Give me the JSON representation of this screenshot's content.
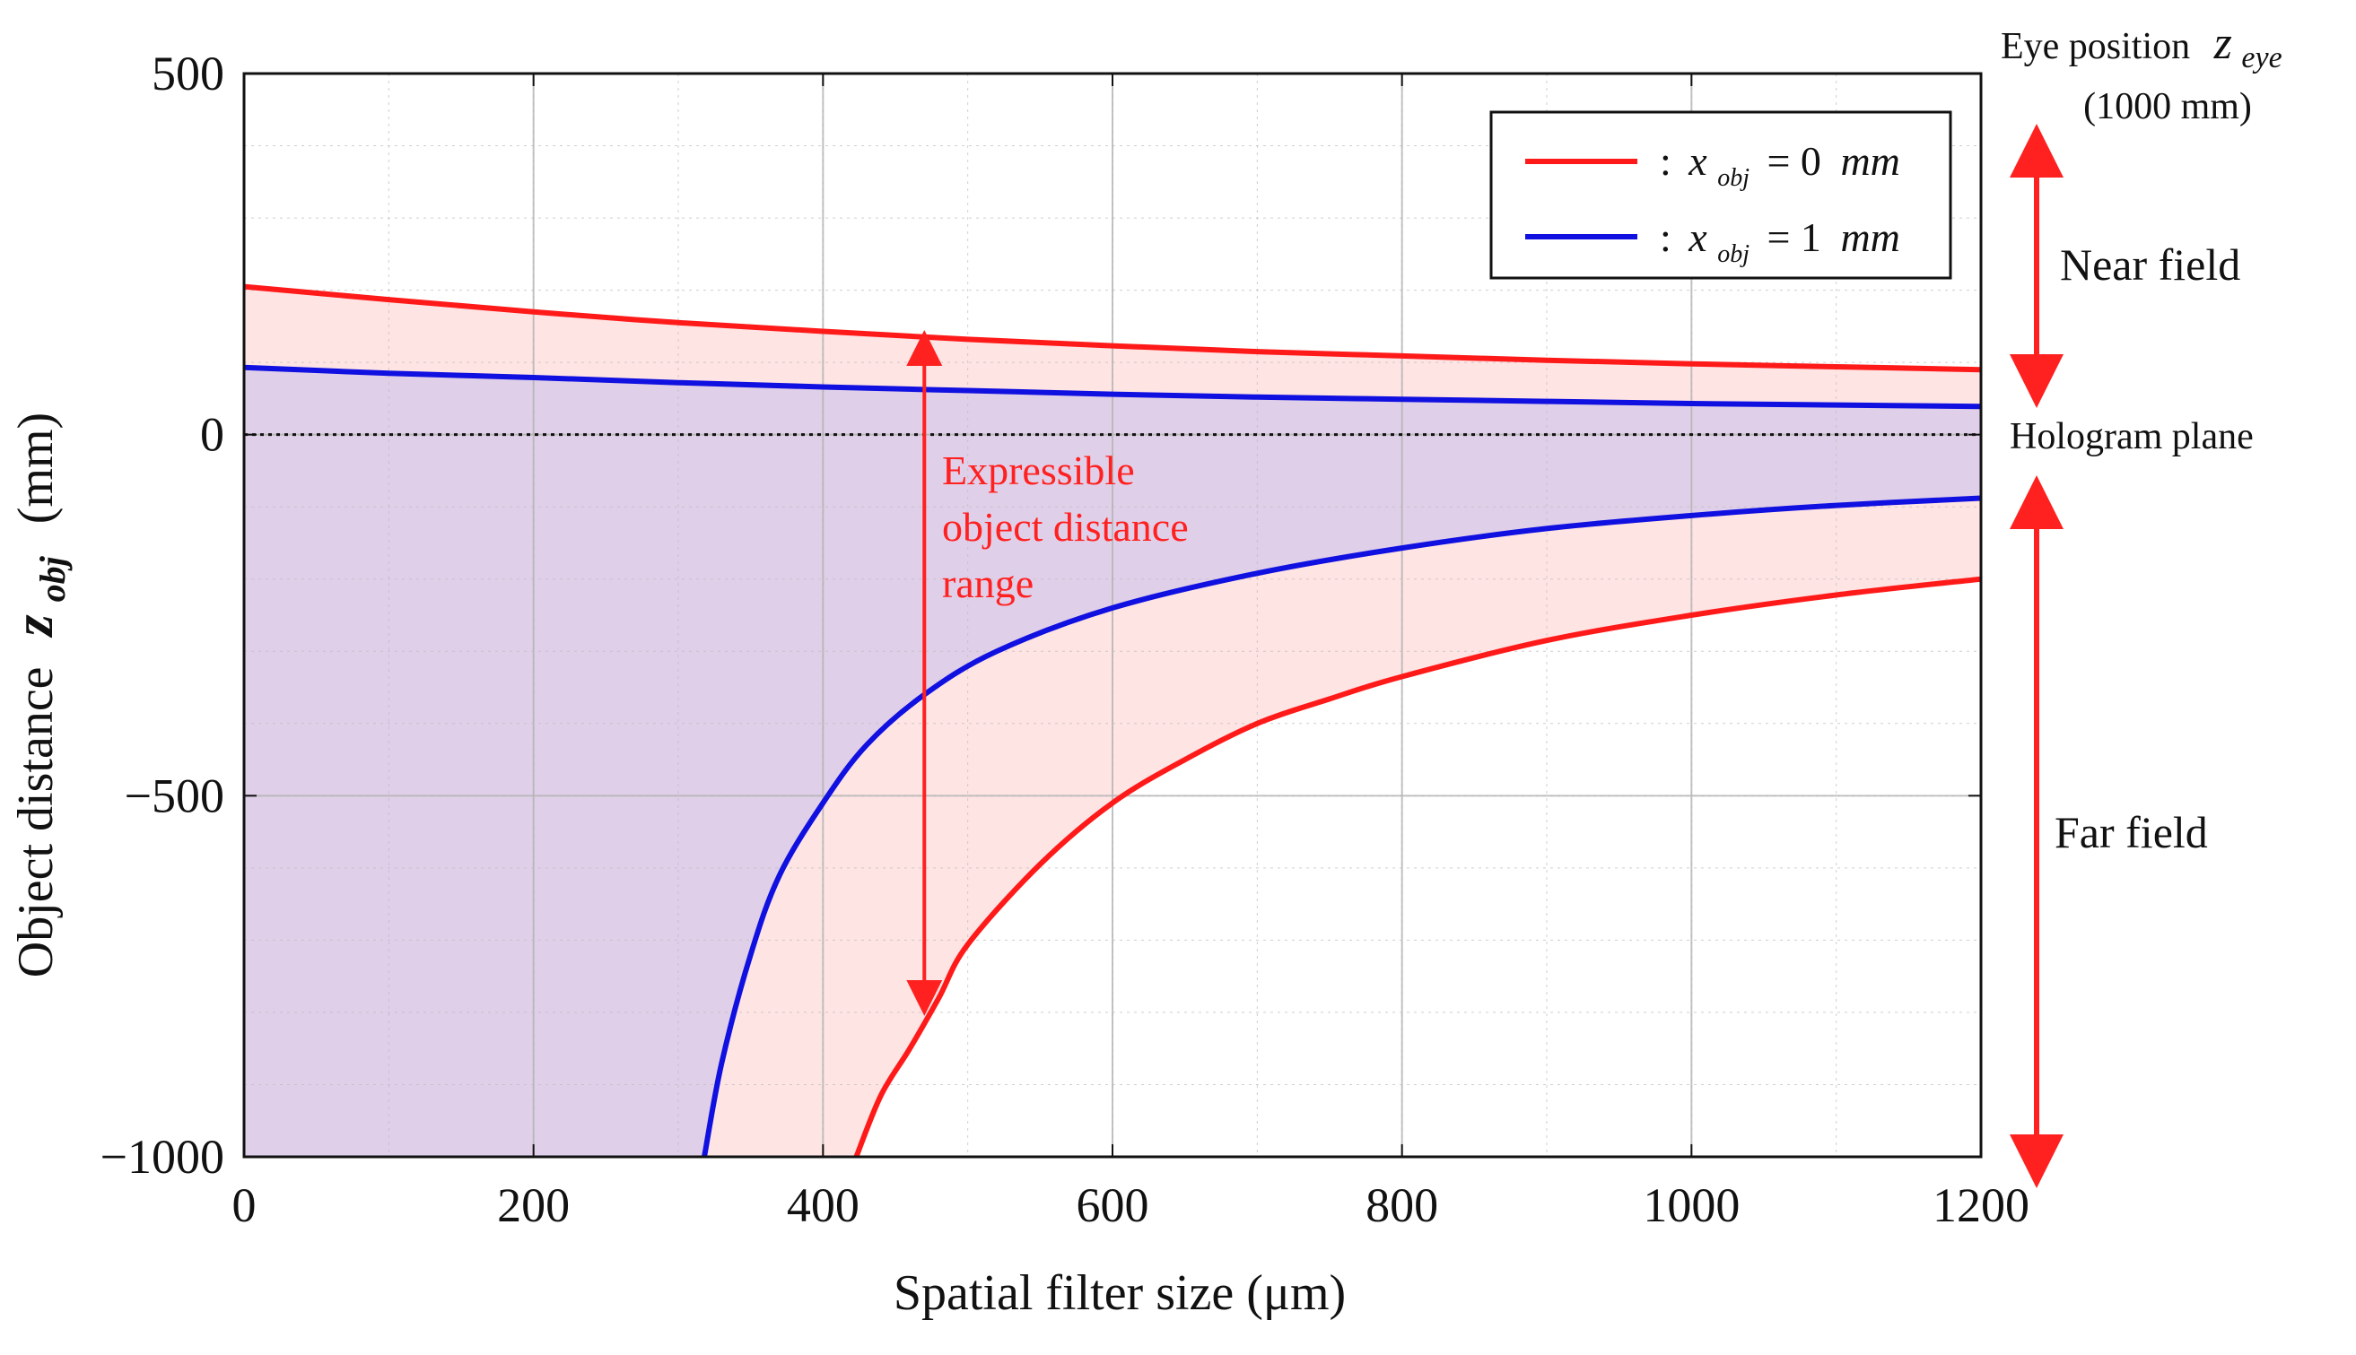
{
  "chart_data": {
    "type": "line",
    "xlabel": "Spatial filter size (μm)",
    "ylabel_text": "Object distance",
    "ylabel_symbol": "z",
    "ylabel_subscript": "obj",
    "ylabel_unit": "(mm)",
    "xlim": [
      0,
      1200
    ],
    "ylim": [
      -1000,
      500
    ],
    "xticks": [
      0,
      200,
      400,
      600,
      800,
      1000,
      1200
    ],
    "yticks": [
      -1000,
      -500,
      0,
      500
    ],
    "xtick_labels": [
      "0",
      "200",
      "400",
      "600",
      "800",
      "1000",
      "1200"
    ],
    "ytick_labels": [
      "−1000",
      "−500",
      "0",
      "500"
    ],
    "grid": true,
    "legend_position": "top-right",
    "series": [
      {
        "name": "x_obj = 0 mm",
        "color": "#ff1a1a",
        "fill_color": "#ffe4e4",
        "upper": {
          "x": [
            0,
            100,
            200,
            300,
            400,
            500,
            600,
            700,
            800,
            900,
            1000,
            1100,
            1200
          ],
          "y": [
            205,
            187,
            170,
            155,
            143,
            132,
            123,
            115,
            109,
            103,
            98,
            94,
            90
          ]
        },
        "lower": {
          "x": [
            423,
            440,
            460,
            480,
            500,
            550,
            600,
            650,
            700,
            750,
            800,
            900,
            1000,
            1100,
            1200
          ],
          "y": [
            -1000,
            -915,
            -850,
            -780,
            -706,
            -595,
            -510,
            -450,
            -400,
            -366,
            -335,
            -285,
            -250,
            -222,
            -200
          ]
        }
      },
      {
        "name": "x_obj = 1 mm",
        "color": "#1010e0",
        "fill_color": "#e0cfe8",
        "upper": {
          "x": [
            0,
            100,
            200,
            300,
            400,
            500,
            600,
            700,
            800,
            900,
            1000,
            1100,
            1200
          ],
          "y": [
            93,
            85,
            79,
            72,
            66,
            61,
            56,
            52,
            49,
            46,
            43,
            41,
            39
          ]
        },
        "lower": {
          "x": [
            318,
            330,
            350,
            370,
            400,
            430,
            470,
            520,
            600,
            700,
            800,
            900,
            1000,
            1100,
            1200
          ],
          "y": [
            -1000,
            -870,
            -720,
            -610,
            -510,
            -430,
            -360,
            -300,
            -240,
            -192,
            -157,
            -130,
            -112,
            -98,
            -88
          ]
        }
      }
    ],
    "legend": [
      {
        "prefix": ":",
        "var": "x",
        "sub": "obj",
        "eq": "= 0",
        "unit": "mm",
        "color": "#ff1a1a"
      },
      {
        "prefix": ":",
        "var": "x",
        "sub": "obj",
        "eq": "= 1",
        "unit": "mm",
        "color": "#1010e0"
      }
    ],
    "annotations": {
      "range_arrow": {
        "x": 470,
        "y_top": 120,
        "y_bottom": -780,
        "color": "#ff2020"
      },
      "range_label_lines": [
        "Expressible",
        "object distance",
        "range"
      ],
      "hologram_plane_y": 0,
      "hologram_plane_label": "Hologram plane",
      "eye_position_label": "Eye position",
      "eye_symbol": "z",
      "eye_subscript": "eye",
      "eye_distance": "(1000 mm)",
      "near_field_label": "Near field",
      "far_field_label": "Far field"
    }
  }
}
